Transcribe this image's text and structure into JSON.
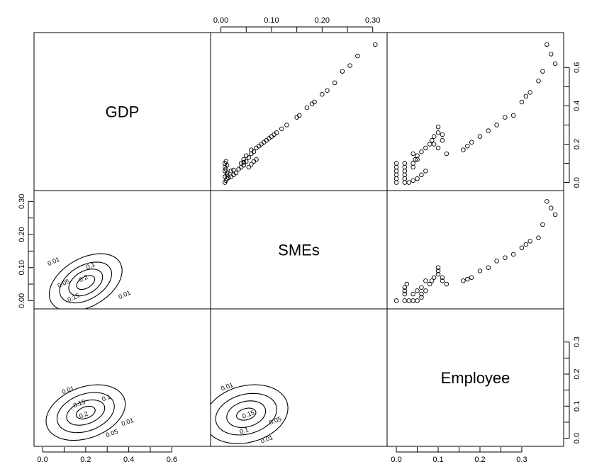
{
  "chart_data": {
    "type": "scatter",
    "layout": "pairs matrix (upper: scatter, diagonal: variable names, lower: density contours)",
    "variables": [
      "GDP",
      "SMEs",
      "Employee"
    ],
    "axes": {
      "top_ticks": [
        "0.00",
        "0.10",
        "0.20",
        "0.30"
      ],
      "top_tick_values": [
        0.0,
        0.1,
        0.2,
        0.3
      ],
      "bottom_left_ticks": [
        "0.0",
        "0.2",
        "0.4",
        "0.6"
      ],
      "bottom_left_tick_values": [
        0.0,
        0.2,
        0.4,
        0.6
      ],
      "bottom_right_ticks": [
        "0.0",
        "0.1",
        "0.2",
        "0.3"
      ],
      "bottom_right_tick_values": [
        0.0,
        0.1,
        0.2,
        0.3
      ],
      "left_mid_ticks": [
        "0.00",
        "0.10",
        "0.20",
        "0.30"
      ],
      "left_mid_tick_values": [
        0.0,
        0.1,
        0.2,
        0.3
      ],
      "right_top_ticks": [
        "0.0",
        "0.2",
        "0.4",
        "0.6"
      ],
      "right_top_tick_values": [
        0.0,
        0.2,
        0.4,
        0.6
      ],
      "right_bottom_ticks": [
        "0.0",
        "0.1",
        "0.2",
        "0.3"
      ],
      "right_bottom_tick_values": [
        0.0,
        0.1,
        0.2,
        0.3
      ]
    },
    "ranges": {
      "GDP": [
        -0.02,
        0.76
      ],
      "SMEs": [
        -0.012,
        0.32
      ],
      "Employee": [
        -0.012,
        0.39
      ]
    },
    "panels": {
      "GDP_vs_SMEs": {
        "x_var": "SMEs",
        "y_var": "GDP",
        "points": [
          [
            0.008,
            0.0
          ],
          [
            0.01,
            0.01
          ],
          [
            0.012,
            0.02
          ],
          [
            0.008,
            0.03
          ],
          [
            0.012,
            0.04
          ],
          [
            0.008,
            0.06
          ],
          [
            0.01,
            0.07
          ],
          [
            0.008,
            0.08
          ],
          [
            0.012,
            0.09
          ],
          [
            0.008,
            0.1
          ],
          [
            0.01,
            0.11
          ],
          [
            0.012,
            0.05
          ],
          [
            0.015,
            0.025
          ],
          [
            0.02,
            0.03
          ],
          [
            0.025,
            0.04
          ],
          [
            0.03,
            0.05
          ],
          [
            0.02,
            0.06
          ],
          [
            0.025,
            0.065
          ],
          [
            0.035,
            0.07
          ],
          [
            0.04,
            0.08
          ],
          [
            0.045,
            0.09
          ],
          [
            0.04,
            0.1
          ],
          [
            0.05,
            0.11
          ],
          [
            0.045,
            0.12
          ],
          [
            0.055,
            0.13
          ],
          [
            0.05,
            0.14
          ],
          [
            0.06,
            0.15
          ],
          [
            0.065,
            0.16
          ],
          [
            0.06,
            0.17
          ],
          [
            0.07,
            0.18
          ],
          [
            0.075,
            0.19
          ],
          [
            0.08,
            0.2
          ],
          [
            0.085,
            0.21
          ],
          [
            0.09,
            0.22
          ],
          [
            0.095,
            0.23
          ],
          [
            0.1,
            0.24
          ],
          [
            0.105,
            0.25
          ],
          [
            0.11,
            0.26
          ],
          [
            0.12,
            0.28
          ],
          [
            0.13,
            0.3
          ],
          [
            0.055,
            0.08
          ],
          [
            0.06,
            0.095
          ],
          [
            0.065,
            0.11
          ],
          [
            0.07,
            0.12
          ],
          [
            0.045,
            0.105
          ],
          [
            0.15,
            0.34
          ],
          [
            0.155,
            0.35
          ],
          [
            0.17,
            0.39
          ],
          [
            0.18,
            0.41
          ],
          [
            0.185,
            0.42
          ],
          [
            0.2,
            0.46
          ],
          [
            0.21,
            0.48
          ],
          [
            0.225,
            0.52
          ],
          [
            0.24,
            0.58
          ],
          [
            0.255,
            0.61
          ],
          [
            0.27,
            0.66
          ],
          [
            0.305,
            0.72
          ]
        ]
      },
      "GDP_vs_Employee": {
        "x_var": "Employee",
        "y_var": "GDP",
        "points": [
          [
            0.0,
            0.0
          ],
          [
            0.0,
            0.02
          ],
          [
            0.0,
            0.04
          ],
          [
            0.0,
            0.06
          ],
          [
            0.0,
            0.08
          ],
          [
            0.0,
            0.1
          ],
          [
            0.02,
            0.0
          ],
          [
            0.02,
            0.02
          ],
          [
            0.02,
            0.04
          ],
          [
            0.02,
            0.06
          ],
          [
            0.02,
            0.08
          ],
          [
            0.02,
            0.1
          ],
          [
            0.03,
            0.0
          ],
          [
            0.04,
            0.01
          ],
          [
            0.05,
            0.02
          ],
          [
            0.06,
            0.04
          ],
          [
            0.07,
            0.06
          ],
          [
            0.04,
            0.08
          ],
          [
            0.04,
            0.1
          ],
          [
            0.045,
            0.12
          ],
          [
            0.04,
            0.15
          ],
          [
            0.05,
            0.12
          ],
          [
            0.05,
            0.14
          ],
          [
            0.06,
            0.16
          ],
          [
            0.07,
            0.18
          ],
          [
            0.08,
            0.2
          ],
          [
            0.085,
            0.22
          ],
          [
            0.09,
            0.24
          ],
          [
            0.1,
            0.26
          ],
          [
            0.1,
            0.29
          ],
          [
            0.11,
            0.22
          ],
          [
            0.12,
            0.15
          ],
          [
            0.1,
            0.18
          ],
          [
            0.09,
            0.2
          ],
          [
            0.11,
            0.25
          ],
          [
            0.16,
            0.17
          ],
          [
            0.17,
            0.19
          ],
          [
            0.18,
            0.21
          ],
          [
            0.2,
            0.24
          ],
          [
            0.22,
            0.27
          ],
          [
            0.24,
            0.3
          ],
          [
            0.26,
            0.34
          ],
          [
            0.28,
            0.35
          ],
          [
            0.3,
            0.42
          ],
          [
            0.31,
            0.45
          ],
          [
            0.32,
            0.47
          ],
          [
            0.34,
            0.53
          ],
          [
            0.35,
            0.58
          ],
          [
            0.36,
            0.72
          ],
          [
            0.37,
            0.67
          ],
          [
            0.38,
            0.62
          ]
        ]
      },
      "SMEs_vs_Employee": {
        "x_var": "Employee",
        "y_var": "SMEs",
        "points": [
          [
            0.0,
            0.0
          ],
          [
            0.02,
            0.0
          ],
          [
            0.02,
            0.02
          ],
          [
            0.02,
            0.03
          ],
          [
            0.02,
            0.04
          ],
          [
            0.025,
            0.05
          ],
          [
            0.03,
            0.0
          ],
          [
            0.04,
            0.0
          ],
          [
            0.05,
            0.0
          ],
          [
            0.06,
            0.01
          ],
          [
            0.04,
            0.02
          ],
          [
            0.05,
            0.03
          ],
          [
            0.06,
            0.04
          ],
          [
            0.06,
            0.02
          ],
          [
            0.07,
            0.03
          ],
          [
            0.07,
            0.06
          ],
          [
            0.08,
            0.05
          ],
          [
            0.085,
            0.06
          ],
          [
            0.09,
            0.07
          ],
          [
            0.1,
            0.08
          ],
          [
            0.1,
            0.09
          ],
          [
            0.1,
            0.1
          ],
          [
            0.11,
            0.07
          ],
          [
            0.11,
            0.06
          ],
          [
            0.12,
            0.05
          ],
          [
            0.16,
            0.06
          ],
          [
            0.17,
            0.065
          ],
          [
            0.18,
            0.07
          ],
          [
            0.2,
            0.09
          ],
          [
            0.22,
            0.1
          ],
          [
            0.24,
            0.12
          ],
          [
            0.26,
            0.13
          ],
          [
            0.28,
            0.14
          ],
          [
            0.3,
            0.16
          ],
          [
            0.31,
            0.17
          ],
          [
            0.32,
            0.18
          ],
          [
            0.34,
            0.19
          ],
          [
            0.35,
            0.23
          ],
          [
            0.36,
            0.3
          ],
          [
            0.37,
            0.28
          ],
          [
            0.38,
            0.26
          ]
        ]
      },
      "contour_labels": {
        "SMEs_GDP": [
          "0.01",
          "0.1",
          "0.05",
          "0.2",
          "0.15",
          "0.01"
        ],
        "Employee_GDP": [
          "0.01",
          "0.1",
          "0.15",
          "0.2",
          "0.05",
          "0.01"
        ],
        "Employee_SMEs": [
          "0.01",
          "0.15",
          "0.05",
          "0.1",
          "0.01"
        ]
      }
    }
  }
}
